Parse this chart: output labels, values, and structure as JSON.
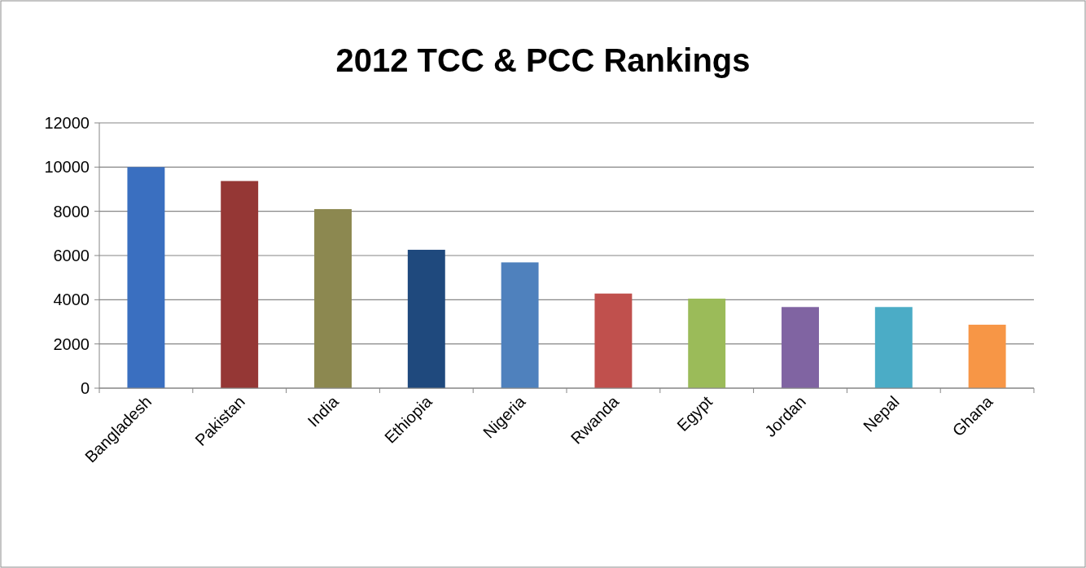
{
  "chart_data": {
    "type": "bar",
    "title": "2012 TCC & PCC Rankings",
    "categories": [
      "Bangladesh",
      "Pakistan",
      "India",
      "Ethiopia",
      "Nigeria",
      "Rwanda",
      "Egypt",
      "Jordan",
      "Nepal",
      "Ghana"
    ],
    "values": [
      10000,
      9370,
      8100,
      6260,
      5690,
      4280,
      4050,
      3670,
      3670,
      2870
    ],
    "colors": [
      "#3a6fc0",
      "#953735",
      "#8c8850",
      "#1f497d",
      "#4f81bd",
      "#c0504d",
      "#9bbb59",
      "#8064a2",
      "#4bacc6",
      "#f79646"
    ],
    "ylim": [
      0,
      12000
    ],
    "yticks": [
      0,
      2000,
      4000,
      6000,
      8000,
      10000,
      12000
    ],
    "grid": "y"
  }
}
